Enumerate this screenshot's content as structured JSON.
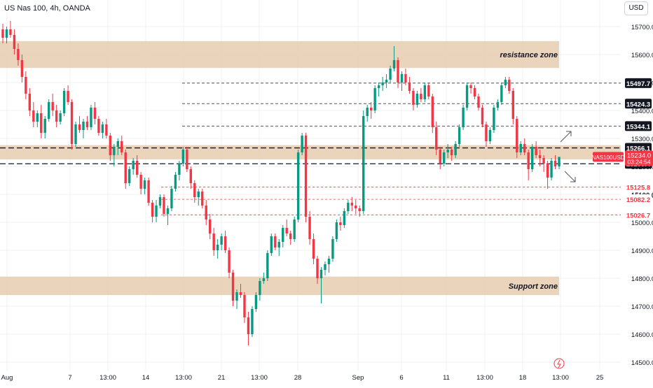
{
  "header": {
    "symbol_info": "US Nas 100, 4h, OANDA",
    "currency_button": "USD"
  },
  "colors": {
    "up": "#089981",
    "down": "#f23645",
    "zone": "#e8cdb0",
    "grid": "#eef0f3",
    "label_bg": "#131722",
    "symbol_label_bg": "#f23645"
  },
  "chart_data": {
    "type": "candlestick",
    "ylim": [
      14500,
      15750
    ],
    "y_ticks": [
      14500,
      14600,
      14700,
      14800,
      14900,
      15000,
      15100,
      15200,
      15300,
      15400,
      15500,
      15600,
      15700
    ],
    "x_ticks": [
      "Aug",
      "7",
      "13:00",
      "14",
      "13:00",
      "21",
      "13:00",
      "28",
      "Sep",
      "6",
      "11",
      "13:00",
      "18",
      "13:00",
      "25"
    ],
    "zones": [
      {
        "label": "resistance zone",
        "from": 15552,
        "to": 15648
      },
      {
        "label": "",
        "from": 15225,
        "to": 15276
      },
      {
        "label": "Support zone",
        "from": 14740,
        "to": 14806
      }
    ],
    "levels": [
      {
        "value": 15497.7,
        "label": "15497.7",
        "style": "dashed-dark"
      },
      {
        "value": 15424.3,
        "label": "15424.3",
        "style": "dashed-dark"
      },
      {
        "value": 15344.1,
        "label": "15344.1",
        "style": "dashed-dark"
      },
      {
        "value": 15266.1,
        "label": "15266.1",
        "style": "dashed-heavy"
      },
      {
        "value": 15209.4,
        "label": "15209.4",
        "style": "dashed-heavy"
      },
      {
        "value": 15125.8,
        "label": "15125.8",
        "style": "dashed-red"
      },
      {
        "value": 15082.2,
        "label": "15082.2",
        "style": "dashed-red"
      },
      {
        "value": 15026.7,
        "label": "15026.7",
        "style": "dashed-red"
      }
    ],
    "current_price": {
      "symbol": "NAS100USD",
      "value": "15234.0",
      "countdown": "03:24:54",
      "hidden_tick": "15100.0"
    },
    "series": [
      {
        "values": [
          [
            15690,
            15710,
            15640,
            15660
          ],
          [
            15660,
            15700,
            15640,
            15690
          ],
          [
            15690,
            15720,
            15660,
            15670
          ],
          [
            15670,
            15690,
            15600,
            15620
          ],
          [
            15620,
            15640,
            15560,
            15580
          ],
          [
            15580,
            15600,
            15500,
            15520
          ],
          [
            15520,
            15540,
            15440,
            15460
          ],
          [
            15460,
            15480,
            15380,
            15400
          ],
          [
            15400,
            15430,
            15340,
            15360
          ],
          [
            15360,
            15400,
            15340,
            15390
          ],
          [
            15390,
            15420,
            15300,
            15320
          ],
          [
            15320,
            15380,
            15300,
            15370
          ],
          [
            15370,
            15440,
            15360,
            15430
          ],
          [
            15430,
            15460,
            15380,
            15400
          ],
          [
            15400,
            15420,
            15340,
            15360
          ],
          [
            15360,
            15400,
            15350,
            15390
          ],
          [
            15390,
            15480,
            15380,
            15470
          ],
          [
            15470,
            15490,
            15420,
            15430
          ],
          [
            15430,
            15440,
            15260,
            15280
          ],
          [
            15280,
            15360,
            15270,
            15350
          ],
          [
            15350,
            15380,
            15320,
            15330
          ],
          [
            15330,
            15370,
            15300,
            15360
          ],
          [
            15360,
            15380,
            15330,
            15340
          ],
          [
            15340,
            15420,
            15330,
            15410
          ],
          [
            15410,
            15430,
            15350,
            15370
          ],
          [
            15370,
            15380,
            15310,
            15320
          ],
          [
            15320,
            15360,
            15300,
            15350
          ],
          [
            15350,
            15370,
            15300,
            15310
          ],
          [
            15310,
            15320,
            15220,
            15240
          ],
          [
            15240,
            15280,
            15200,
            15270
          ],
          [
            15270,
            15300,
            15240,
            15290
          ],
          [
            15290,
            15310,
            15240,
            15250
          ],
          [
            15250,
            15260,
            15120,
            15140
          ],
          [
            15140,
            15200,
            15130,
            15190
          ],
          [
            15190,
            15230,
            15170,
            15220
          ],
          [
            15220,
            15240,
            15160,
            15170
          ],
          [
            15170,
            15180,
            15100,
            15120
          ],
          [
            15120,
            15160,
            15100,
            15150
          ],
          [
            15150,
            15160,
            15060,
            15070
          ],
          [
            15070,
            15080,
            15000,
            15020
          ],
          [
            15020,
            15080,
            15000,
            15060
          ],
          [
            15060,
            15100,
            15050,
            15090
          ],
          [
            15090,
            15100,
            15020,
            15030
          ],
          [
            15030,
            15060,
            14990,
            15050
          ],
          [
            15050,
            15130,
            15040,
            15120
          ],
          [
            15120,
            15180,
            15110,
            15170
          ],
          [
            15170,
            15220,
            15150,
            15210
          ],
          [
            15210,
            15270,
            15200,
            15260
          ],
          [
            15260,
            15270,
            15180,
            15190
          ],
          [
            15190,
            15200,
            15120,
            15140
          ],
          [
            15140,
            15150,
            15070,
            15090
          ],
          [
            15090,
            15120,
            15060,
            15110
          ],
          [
            15110,
            15120,
            15050,
            15060
          ],
          [
            15060,
            15080,
            14990,
            15010
          ],
          [
            15010,
            15030,
            14940,
            14960
          ],
          [
            14960,
            14980,
            14880,
            14900
          ],
          [
            14900,
            14940,
            14870,
            14920
          ],
          [
            14920,
            14960,
            14900,
            14950
          ],
          [
            14950,
            14970,
            14890,
            14900
          ],
          [
            14900,
            14910,
            14800,
            14820
          ],
          [
            14820,
            14830,
            14700,
            14720
          ],
          [
            14720,
            14760,
            14690,
            14750
          ],
          [
            14750,
            14780,
            14730,
            14740
          ],
          [
            14740,
            14750,
            14640,
            14660
          ],
          [
            14660,
            14680,
            14560,
            14600
          ],
          [
            14600,
            14700,
            14590,
            14690
          ],
          [
            14690,
            14750,
            14680,
            14740
          ],
          [
            14740,
            14800,
            14720,
            14790
          ],
          [
            14790,
            14820,
            14780,
            14800
          ],
          [
            14800,
            14900,
            14790,
            14890
          ],
          [
            14890,
            14960,
            14880,
            14950
          ],
          [
            14950,
            14960,
            14900,
            14910
          ],
          [
            14910,
            14940,
            14880,
            14930
          ],
          [
            14930,
            14990,
            14910,
            14980
          ],
          [
            14980,
            15010,
            14950,
            14960
          ],
          [
            14960,
            14970,
            14920,
            14940
          ],
          [
            14940,
            15020,
            14930,
            15010
          ],
          [
            15010,
            15260,
            15000,
            15250
          ],
          [
            15250,
            15320,
            15240,
            15310
          ],
          [
            15310,
            15320,
            15000,
            15020
          ],
          [
            15020,
            15040,
            14920,
            14940
          ],
          [
            14940,
            14960,
            14850,
            14870
          ],
          [
            14870,
            14880,
            14780,
            14800
          ],
          [
            14800,
            14840,
            14710,
            14830
          ],
          [
            14830,
            14860,
            14810,
            14850
          ],
          [
            14850,
            14880,
            14820,
            14870
          ],
          [
            14870,
            14950,
            14860,
            14940
          ],
          [
            14940,
            15010,
            14930,
            15000
          ],
          [
            15000,
            15020,
            14970,
            14990
          ],
          [
            14990,
            15050,
            14980,
            15040
          ],
          [
            15040,
            15080,
            15030,
            15070
          ],
          [
            15070,
            15090,
            15040,
            15060
          ],
          [
            15060,
            15080,
            15030,
            15050
          ],
          [
            15050,
            15060,
            15020,
            15040
          ],
          [
            15040,
            15400,
            15030,
            15380
          ],
          [
            15380,
            15420,
            15360,
            15410
          ],
          [
            15410,
            15430,
            15370,
            15400
          ],
          [
            15400,
            15490,
            15390,
            15480
          ],
          [
            15480,
            15500,
            15450,
            15490
          ],
          [
            15490,
            15520,
            15470,
            15500
          ],
          [
            15500,
            15530,
            15480,
            15510
          ],
          [
            15510,
            15560,
            15500,
            15550
          ],
          [
            15550,
            15630,
            15540,
            15580
          ],
          [
            15580,
            15590,
            15480,
            15500
          ],
          [
            15500,
            15540,
            15470,
            15530
          ],
          [
            15530,
            15550,
            15490,
            15500
          ],
          [
            15500,
            15520,
            15460,
            15470
          ],
          [
            15470,
            15480,
            15400,
            15420
          ],
          [
            15420,
            15470,
            15410,
            15460
          ],
          [
            15460,
            15480,
            15430,
            15440
          ],
          [
            15440,
            15500,
            15430,
            15490
          ],
          [
            15490,
            15500,
            15440,
            15450
          ],
          [
            15450,
            15460,
            15320,
            15340
          ],
          [
            15340,
            15360,
            15240,
            15260
          ],
          [
            15260,
            15270,
            15190,
            15210
          ],
          [
            15210,
            15260,
            15200,
            15250
          ],
          [
            15250,
            15280,
            15230,
            15260
          ],
          [
            15260,
            15270,
            15220,
            15240
          ],
          [
            15240,
            15290,
            15230,
            15280
          ],
          [
            15280,
            15350,
            15270,
            15340
          ],
          [
            15340,
            15420,
            15330,
            15410
          ],
          [
            15410,
            15500,
            15400,
            15490
          ],
          [
            15490,
            15500,
            15460,
            15480
          ],
          [
            15480,
            15490,
            15440,
            15450
          ],
          [
            15450,
            15460,
            15400,
            15410
          ],
          [
            15410,
            15420,
            15340,
            15350
          ],
          [
            15350,
            15360,
            15270,
            15290
          ],
          [
            15290,
            15340,
            15280,
            15330
          ],
          [
            15330,
            15420,
            15320,
            15410
          ],
          [
            15410,
            15440,
            15400,
            15430
          ],
          [
            15430,
            15500,
            15420,
            15490
          ],
          [
            15490,
            15520,
            15480,
            15510
          ],
          [
            15510,
            15520,
            15460,
            15470
          ],
          [
            15470,
            15480,
            15350,
            15370
          ],
          [
            15370,
            15380,
            15230,
            15250
          ],
          [
            15250,
            15290,
            15240,
            15280
          ],
          [
            15280,
            15300,
            15240,
            15250
          ],
          [
            15250,
            15260,
            15150,
            15190
          ],
          [
            15190,
            15280,
            15180,
            15270
          ],
          [
            15270,
            15290,
            15230,
            15240
          ],
          [
            15240,
            15260,
            15200,
            15230
          ],
          [
            15230,
            15240,
            15180,
            15210
          ],
          [
            15210,
            15220,
            15120,
            15160
          ],
          [
            15160,
            15230,
            15150,
            15220
          ],
          [
            15220,
            15240,
            15190,
            15200
          ],
          [
            15200,
            15230,
            15190,
            15234
          ]
        ]
      }
    ]
  }
}
